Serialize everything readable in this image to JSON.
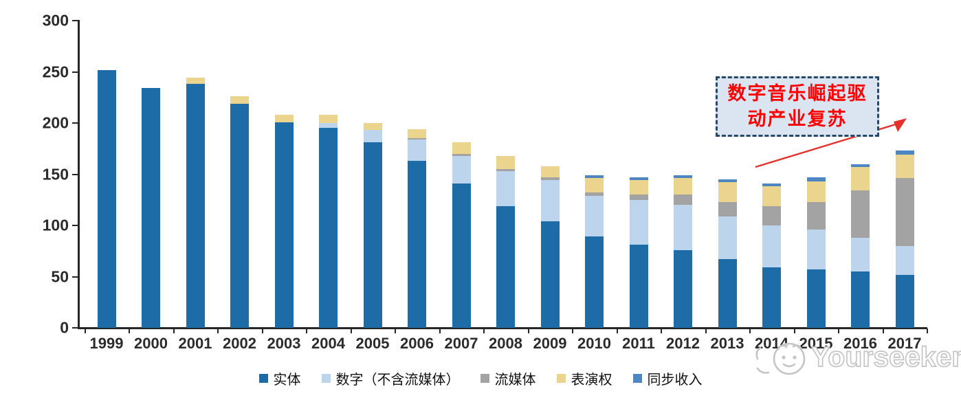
{
  "chart_data": {
    "type": "bar",
    "stacked": true,
    "title": "",
    "xlabel": "",
    "ylabel": "",
    "ylim": [
      0,
      300
    ],
    "y_ticks": [
      0,
      50,
      100,
      150,
      200,
      250,
      300
    ],
    "grid": false,
    "legend_position": "bottom",
    "axis_color": "#262626",
    "categories": [
      "1999",
      "2000",
      "2001",
      "2002",
      "2003",
      "2004",
      "2005",
      "2006",
      "2007",
      "2008",
      "2009",
      "2010",
      "2011",
      "2012",
      "2013",
      "2014",
      "2015",
      "2016",
      "2017"
    ],
    "series": [
      {
        "name": "实体",
        "color": "#1E6CA7",
        "values": [
          252,
          234,
          238,
          219,
          201,
          195,
          181,
          163,
          141,
          119,
          104,
          89,
          81,
          76,
          67,
          59,
          57,
          55,
          52
        ]
      },
      {
        "name": "数字（不含流媒体）",
        "color": "#BCD5EC",
        "values": [
          0,
          0,
          0,
          0,
          0,
          5,
          12,
          21,
          27,
          34,
          40,
          40,
          44,
          44,
          42,
          41,
          39,
          33,
          28
        ]
      },
      {
        "name": "流媒体",
        "color": "#A3A3A3",
        "values": [
          0,
          0,
          0,
          0,
          0,
          0,
          0,
          1,
          2,
          2,
          3,
          3,
          5,
          10,
          14,
          19,
          27,
          46,
          66
        ]
      },
      {
        "name": "表演权",
        "color": "#EBD48E",
        "values": [
          0,
          0,
          6,
          7,
          7,
          8,
          7,
          9,
          11,
          13,
          11,
          14,
          14,
          16,
          19,
          19,
          20,
          23,
          23
        ]
      },
      {
        "name": "同步收入",
        "color": "#4E86C4",
        "values": [
          0,
          0,
          0,
          0,
          0,
          0,
          0,
          0,
          0,
          0,
          0,
          3,
          3,
          3,
          3,
          3,
          4,
          3,
          4
        ]
      }
    ]
  },
  "annotation": {
    "line1": "数字音乐崛起驱",
    "line2": "动产业复苏",
    "text_color": "#ff0000",
    "fill_color": "#dbe5f2",
    "border_color": "#274968",
    "arrow_color": "#e5312b"
  },
  "watermark": {
    "text": "Yourseeker"
  }
}
